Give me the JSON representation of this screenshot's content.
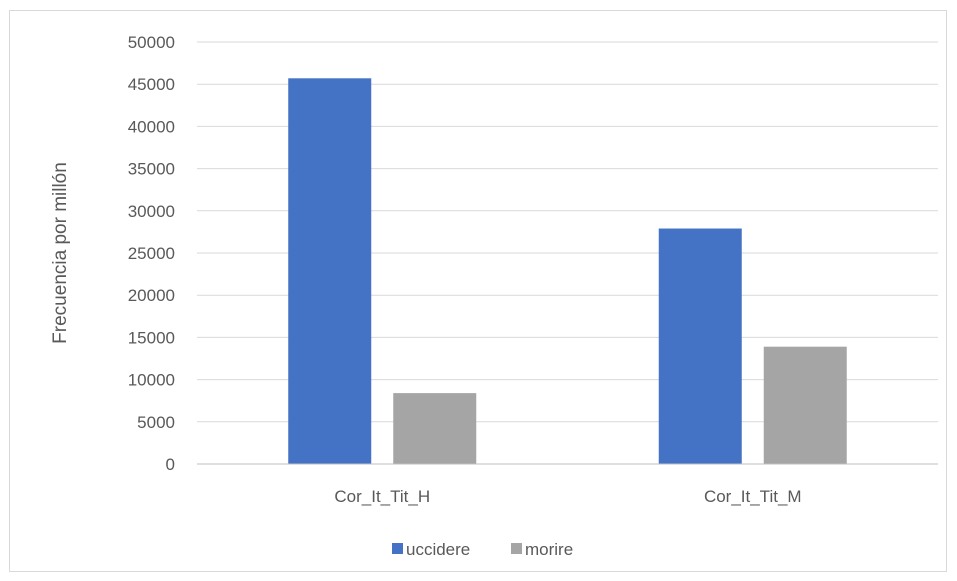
{
  "colors": {
    "uccidere": "#4472c4",
    "morire": "#a5a5a5",
    "grid": "#d9d9d9",
    "axis": "#bfbfbf",
    "text": "#595959"
  },
  "chart_data": {
    "type": "bar",
    "title": "",
    "xlabel": "",
    "ylabel": "Frecuencia por millón",
    "categories": [
      "Cor_It_Tit_H",
      "Cor_It_Tit_M"
    ],
    "series": [
      {
        "name": "uccidere",
        "values": [
          45700,
          27900
        ]
      },
      {
        "name": "morire",
        "values": [
          8400,
          13900
        ]
      }
    ],
    "ylim": [
      0,
      50000
    ],
    "yticks": [
      0,
      5000,
      10000,
      15000,
      20000,
      25000,
      30000,
      35000,
      40000,
      45000,
      50000
    ],
    "grid": true,
    "legend_position": "bottom"
  }
}
